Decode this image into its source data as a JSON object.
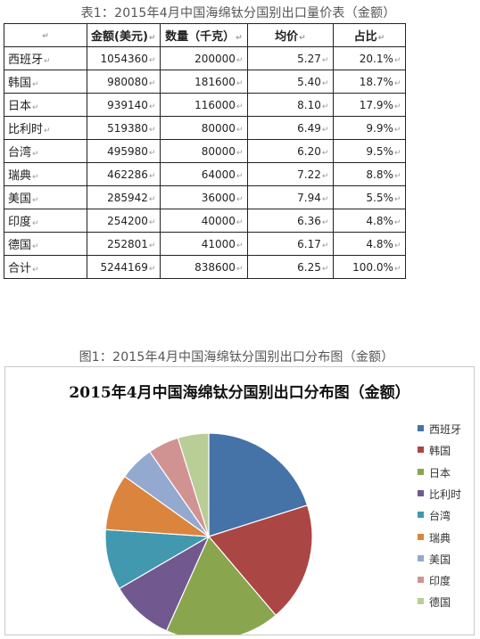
{
  "table": {
    "caption": "表1：2015年4月中国海绵钛分国别出口量价表（金额）",
    "headers": [
      "",
      "金额(美元)",
      "数量（千克）",
      "均价",
      "占比"
    ],
    "rows": [
      [
        "西班牙",
        "1054360",
        "200000",
        "5.27",
        "20.1%"
      ],
      [
        "韩国",
        "980080",
        "181600",
        "5.40",
        "18.7%"
      ],
      [
        "日本",
        "939140",
        "116000",
        "8.10",
        "17.9%"
      ],
      [
        "比利时",
        "519380",
        "80000",
        "6.49",
        "9.9%"
      ],
      [
        "台湾",
        "495980",
        "80000",
        "6.20",
        "9.5%"
      ],
      [
        "瑞典",
        "462286",
        "64000",
        "7.22",
        "8.8%"
      ],
      [
        "美国",
        "285942",
        "36000",
        "7.94",
        "5.5%"
      ],
      [
        "印度",
        "254200",
        "40000",
        "6.36",
        "4.8%"
      ],
      [
        "德国",
        "252801",
        "41000",
        "6.17",
        "4.8%"
      ],
      [
        "合计",
        "5244169",
        "838600",
        "6.25",
        "100.0%"
      ]
    ]
  },
  "chart": {
    "caption": "图1：2015年4月中国海绵钛分国别出口分布图（金额）"
  },
  "chart_data": {
    "type": "pie",
    "title": "2015年4月中国海绵钛分国别出口分布图（金额）",
    "legend_position": "right",
    "series": [
      {
        "name": "西班牙",
        "value": 1054360,
        "color": "#4572A7"
      },
      {
        "name": "韩国",
        "value": 980080,
        "color": "#AA4643"
      },
      {
        "name": "日本",
        "value": 939140,
        "color": "#89A54E"
      },
      {
        "name": "比利时",
        "value": 519380,
        "color": "#71588F"
      },
      {
        "name": "台湾",
        "value": 495980,
        "color": "#4198AF"
      },
      {
        "name": "瑞典",
        "value": 462286,
        "color": "#DB843D"
      },
      {
        "name": "美国",
        "value": 285942,
        "color": "#93A9CF"
      },
      {
        "name": "印度",
        "value": 254200,
        "color": "#D19392"
      },
      {
        "name": "德国",
        "value": 252801,
        "color": "#B9CD96"
      }
    ]
  }
}
